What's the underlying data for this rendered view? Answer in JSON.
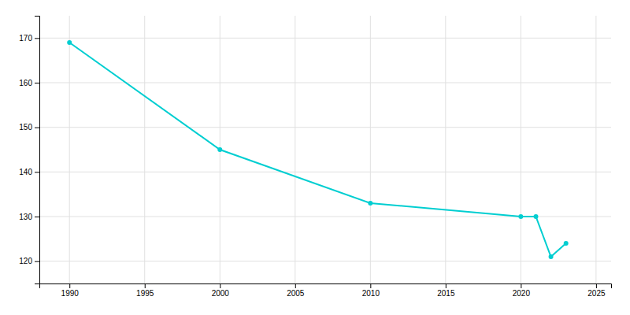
{
  "chart_data": {
    "type": "line",
    "x": [
      1990,
      2000,
      2010,
      2020,
      2021,
      2022,
      2023
    ],
    "y": [
      169,
      145,
      133,
      130,
      130,
      121,
      124
    ],
    "color": "#00CED1",
    "marker": "circle",
    "xlim": [
      1988,
      2026
    ],
    "ylim": [
      115,
      175
    ],
    "xticks": [
      1990,
      1995,
      2000,
      2005,
      2010,
      2015,
      2020,
      2025
    ],
    "yticks": [
      120,
      130,
      140,
      150,
      160,
      170
    ],
    "grid": true
  }
}
